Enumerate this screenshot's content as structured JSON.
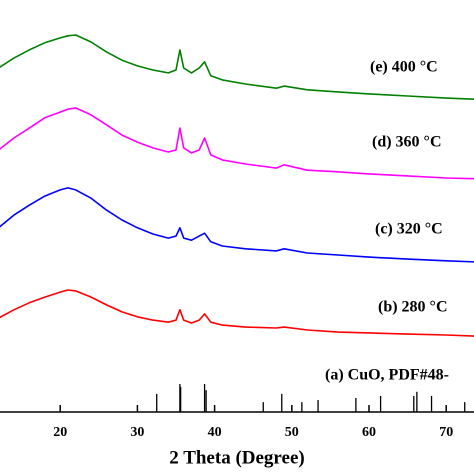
{
  "chart_data": {
    "type": "line",
    "x_label": "2 Theta (Degree)",
    "x": [
      12,
      14,
      16,
      18,
      20,
      21,
      22,
      24,
      26,
      28,
      30,
      32,
      34,
      35,
      35.5,
      36,
      37,
      38,
      38.7,
      39.5,
      41,
      44,
      48,
      49,
      52,
      56,
      60,
      65,
      70,
      74
    ],
    "series": [
      {
        "name": "(e) 400 °C",
        "color": "#008000",
        "values": [
          83.5,
          85.9,
          87.9,
          89.6,
          90.8,
          91.3,
          91.5,
          89.8,
          87.4,
          85.4,
          84.0,
          83.0,
          82.3,
          83.0,
          87.9,
          83.5,
          82.3,
          83.5,
          85.0,
          81.6,
          80.6,
          79.6,
          78.6,
          79.1,
          78.2,
          77.7,
          77.2,
          76.7,
          76.2,
          75.9
        ]
      },
      {
        "name": "(d) 360 °C",
        "color": "#ff00ff",
        "values": [
          63.6,
          66.5,
          68.9,
          71.4,
          72.8,
          73.5,
          73.8,
          72.1,
          69.7,
          67.2,
          65.5,
          64.1,
          63.1,
          63.6,
          68.9,
          64.1,
          62.9,
          63.6,
          66.5,
          62.4,
          61.2,
          60.2,
          59.2,
          60.0,
          58.7,
          58.3,
          57.8,
          57.3,
          56.8,
          56.6
        ]
      },
      {
        "name": "(c) 320 °C",
        "color": "#0000ff",
        "values": [
          44.7,
          47.8,
          50.2,
          52.4,
          53.9,
          54.4,
          53.9,
          51.9,
          49.0,
          46.6,
          44.7,
          43.2,
          42.2,
          42.7,
          44.7,
          42.2,
          41.7,
          42.7,
          43.4,
          41.3,
          40.3,
          39.6,
          39.1,
          39.6,
          38.6,
          38.1,
          37.6,
          37.1,
          36.7,
          36.4
        ]
      },
      {
        "name": "(b) 280 °C",
        "color": "#ff0000",
        "values": [
          22.8,
          24.8,
          26.5,
          27.9,
          29.1,
          29.6,
          29.4,
          27.9,
          26.0,
          24.3,
          23.1,
          22.3,
          21.8,
          22.3,
          24.8,
          22.3,
          21.6,
          22.3,
          23.8,
          21.8,
          21.1,
          20.6,
          20.4,
          20.6,
          19.9,
          19.4,
          19.2,
          18.9,
          18.7,
          18.4
        ]
      }
    ],
    "reference": {
      "name": "(a) CuO, PDF#48-",
      "color": "#000000",
      "x": [
        32.5,
        35.5,
        35.6,
        38.7,
        38.9,
        46.3,
        48.7,
        51.3,
        53.4,
        58.3,
        61.5,
        65.8,
        66.2,
        68.1,
        72.4
      ],
      "values": [
        4.4,
        6.8,
        6.1,
        6.8,
        5.3,
        2.4,
        4.4,
        2.4,
        2.9,
        3.4,
        3.9,
        3.9,
        4.9,
        3.9,
        2.4
      ]
    },
    "xlim": [
      12.2,
      73.6
    ],
    "ylim": [
      0,
      100
    ],
    "xticks": [
      20,
      30,
      40,
      50,
      60,
      70
    ]
  }
}
